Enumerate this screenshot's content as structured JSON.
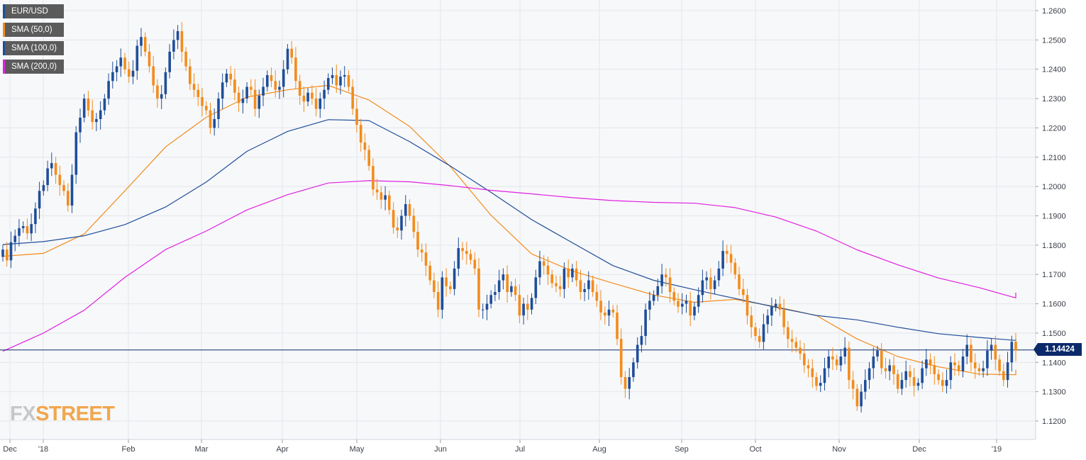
{
  "legend": [
    {
      "label": "EUR/USD",
      "color": "#1f4e99"
    },
    {
      "label": "SMA (50,0)",
      "color": "#f28c1c"
    },
    {
      "label": "SMA (100,0)",
      "color": "#1f4e99"
    },
    {
      "label": "SMA (200,0)",
      "color": "#e020e0"
    }
  ],
  "logo": {
    "fx": "FX",
    "street": "STREET"
  },
  "current_price": "1.14424",
  "chart_data": {
    "type": "candlestick",
    "symbol": "EUR/USD",
    "ylim": [
      1.115,
      1.263
    ],
    "y_ticks": [
      "1.2600",
      "1.2500",
      "1.2400",
      "1.2300",
      "1.2200",
      "1.2100",
      "1.2000",
      "1.1900",
      "1.1800",
      "1.1700",
      "1.1600",
      "1.1500",
      "1.1400",
      "1.1300",
      "1.1200"
    ],
    "x_ticks": [
      "Dec",
      "'18",
      "Feb",
      "Mar",
      "Apr",
      "May",
      "Jun",
      "Jul",
      "Aug",
      "Sep",
      "Oct",
      "Nov",
      "Dec",
      "'19"
    ],
    "grid": true,
    "up_color": "#1f4e99",
    "down_color": "#f28c1c",
    "last_price": 1.14424,
    "closes": [
      1.1785,
      1.1748,
      1.181,
      1.1832,
      1.1858,
      1.1865,
      1.184,
      1.1872,
      1.1925,
      1.1985,
      1.2005,
      1.2062,
      1.208,
      1.204,
      1.2005,
      1.1985,
      1.1935,
      1.204,
      1.2185,
      1.2235,
      1.23,
      1.226,
      1.222,
      1.223,
      1.226,
      1.23,
      1.236,
      1.239,
      1.241,
      1.244,
      1.24,
      1.2375,
      1.2395,
      1.248,
      1.251,
      1.246,
      1.241,
      1.2345,
      1.23,
      1.2315,
      1.239,
      1.246,
      1.25,
      1.253,
      1.246,
      1.241,
      1.235,
      1.233,
      1.2305,
      1.2275,
      1.226,
      1.22,
      1.223,
      1.23,
      1.2355,
      1.2385,
      1.2365,
      1.232,
      1.2285,
      1.23,
      1.234,
      1.233,
      1.2265,
      1.231,
      1.234,
      1.238,
      1.236,
      1.233,
      1.234,
      1.24,
      1.247,
      1.244,
      1.236,
      1.231,
      1.229,
      1.232,
      1.23,
      1.2265,
      1.23,
      1.233,
      1.237,
      1.238,
      1.2345,
      1.2375,
      1.238,
      1.234,
      1.2265,
      1.221,
      1.215,
      1.2125,
      1.207,
      1.199,
      1.198,
      1.1955,
      1.197,
      1.192,
      1.186,
      1.185,
      1.19,
      1.194,
      1.19,
      1.1845,
      1.1785,
      1.1775,
      1.173,
      1.168,
      1.164,
      1.158,
      1.169,
      1.166,
      1.165,
      1.172,
      1.179,
      1.178,
      1.177,
      1.175,
      1.172,
      1.158,
      1.158,
      1.16,
      1.163,
      1.164,
      1.168,
      1.17,
      1.164,
      1.166,
      1.163,
      1.156,
      1.16,
      1.158,
      1.162,
      1.169,
      1.1745,
      1.173,
      1.17,
      1.167,
      1.166,
      1.165,
      1.172,
      1.169,
      1.172,
      1.168,
      1.164,
      1.165,
      1.168,
      1.164,
      1.161,
      1.157,
      1.156,
      1.158,
      1.157,
      1.148,
      1.135,
      1.131,
      1.135,
      1.14,
      1.146,
      1.149,
      1.158,
      1.161,
      1.163,
      1.166,
      1.17,
      1.169,
      1.164,
      1.161,
      1.159,
      1.16,
      1.161,
      1.156,
      1.159,
      1.163,
      1.168,
      1.169,
      1.165,
      1.168,
      1.172,
      1.178,
      1.177,
      1.174,
      1.17,
      1.165,
      1.163,
      1.156,
      1.152,
      1.149,
      1.147,
      1.153,
      1.156,
      1.159,
      1.16,
      1.158,
      1.152,
      1.148,
      1.147,
      1.145,
      1.143,
      1.139,
      1.138,
      1.135,
      1.132,
      1.133,
      1.138,
      1.142,
      1.141,
      1.139,
      1.142,
      1.145,
      1.134,
      1.131,
      1.125,
      1.13,
      1.134,
      1.138,
      1.142,
      1.144,
      1.138,
      1.137,
      1.139,
      1.136,
      1.131,
      1.134,
      1.137,
      1.135,
      1.132,
      1.133,
      1.138,
      1.141,
      1.139,
      1.136,
      1.134,
      1.132,
      1.134,
      1.14,
      1.139,
      1.137,
      1.142,
      1.146,
      1.14,
      1.138,
      1.137,
      1.138,
      1.144,
      1.146,
      1.141,
      1.137,
      1.134,
      1.14,
      1.147,
      1.144
    ],
    "series": [
      {
        "name": "SMA (50,0)",
        "color": "#f28c1c",
        "x": [
          0,
          10,
          20,
          30,
          40,
          50,
          60,
          70,
          80,
          90,
          100,
          110,
          120,
          130,
          140,
          150,
          160,
          170,
          180,
          190,
          200,
          210,
          220,
          230,
          240,
          250,
          260
        ],
        "values": [
          1.1762,
          1.1772,
          1.1838,
          1.1985,
          1.2135,
          1.2236,
          1.2305,
          1.233,
          1.2345,
          1.2295,
          1.2205,
          1.2068,
          1.1902,
          1.177,
          1.1712,
          1.167,
          1.163,
          1.1605,
          1.1615,
          1.159,
          1.156,
          1.148,
          1.142,
          1.1385,
          1.136,
          1.1358,
          1.1375
        ]
      },
      {
        "name": "SMA (100,0)",
        "color": "#1f4e99",
        "x": [
          0,
          10,
          20,
          30,
          40,
          50,
          60,
          70,
          80,
          90,
          100,
          110,
          120,
          130,
          140,
          150,
          160,
          170,
          180,
          190,
          200,
          210,
          220,
          230,
          240,
          250,
          260
        ],
        "values": [
          1.1802,
          1.1812,
          1.1832,
          1.187,
          1.193,
          1.2015,
          1.212,
          1.2188,
          1.2228,
          1.2225,
          1.2153,
          1.207,
          1.198,
          1.1887,
          1.1808,
          1.173,
          1.168,
          1.1648,
          1.1618,
          1.1588,
          1.156,
          1.1545,
          1.152,
          1.1498,
          1.1485,
          1.1475,
          1.1482
        ]
      },
      {
        "name": "SMA (200,0)",
        "color": "#e020e0",
        "x": [
          0,
          10,
          20,
          30,
          40,
          50,
          60,
          70,
          80,
          90,
          100,
          110,
          120,
          130,
          140,
          150,
          160,
          170,
          180,
          190,
          200,
          210,
          220,
          230,
          240,
          250,
          260
        ],
        "values": [
          1.1438,
          1.15,
          1.1578,
          1.169,
          1.1785,
          1.1848,
          1.192,
          1.1972,
          1.2012,
          1.202,
          1.2016,
          1.2003,
          1.1987,
          1.1975,
          1.1962,
          1.1952,
          1.1946,
          1.1943,
          1.1928,
          1.1896,
          1.1848,
          1.1784,
          1.1733,
          1.1688,
          1.1655,
          1.162,
          1.1638
        ]
      }
    ]
  }
}
